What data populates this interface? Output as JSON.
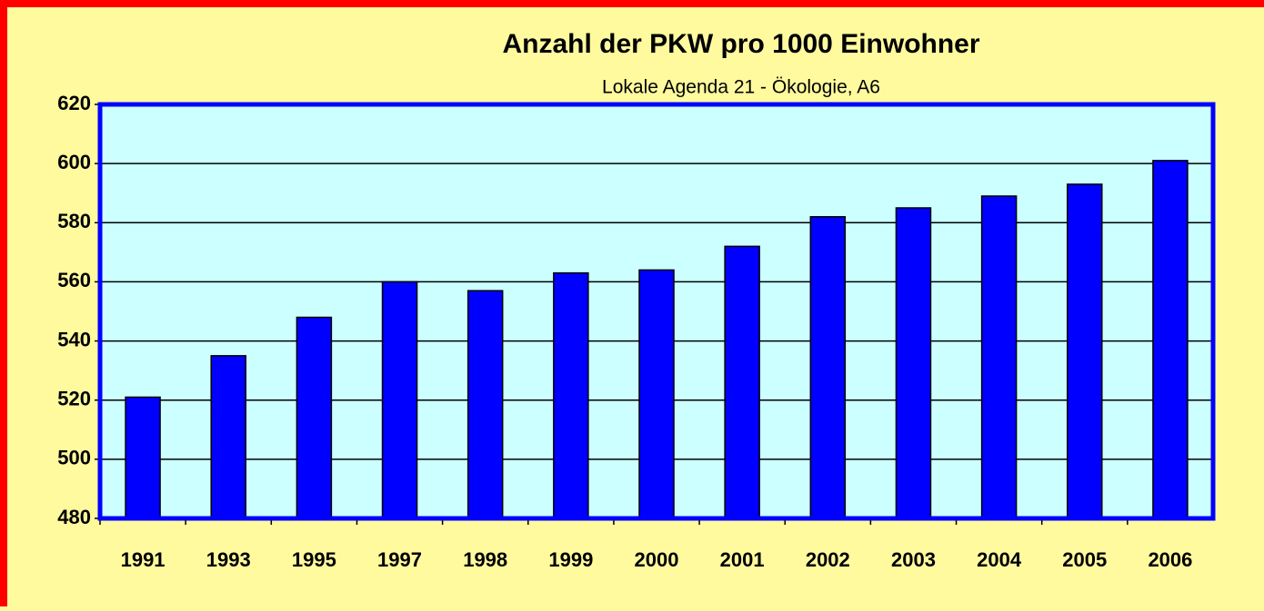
{
  "chart_data": {
    "type": "bar",
    "title": "Anzahl der PKW pro 1000 Einwohner",
    "subtitle": "Lokale Agenda 21 - Ökologie, A6",
    "categories": [
      "1991",
      "1993",
      "1995",
      "1997",
      "1998",
      "1999",
      "2000",
      "2001",
      "2002",
      "2003",
      "2004",
      "2005",
      "2006"
    ],
    "values": [
      521,
      535,
      548,
      560,
      557,
      563,
      564,
      572,
      582,
      585,
      589,
      593,
      601
    ],
    "color": "#0000ff",
    "ylim": [
      480,
      620
    ],
    "yticks": [
      480,
      500,
      520,
      540,
      560,
      580,
      600,
      620
    ],
    "grid": true
  }
}
